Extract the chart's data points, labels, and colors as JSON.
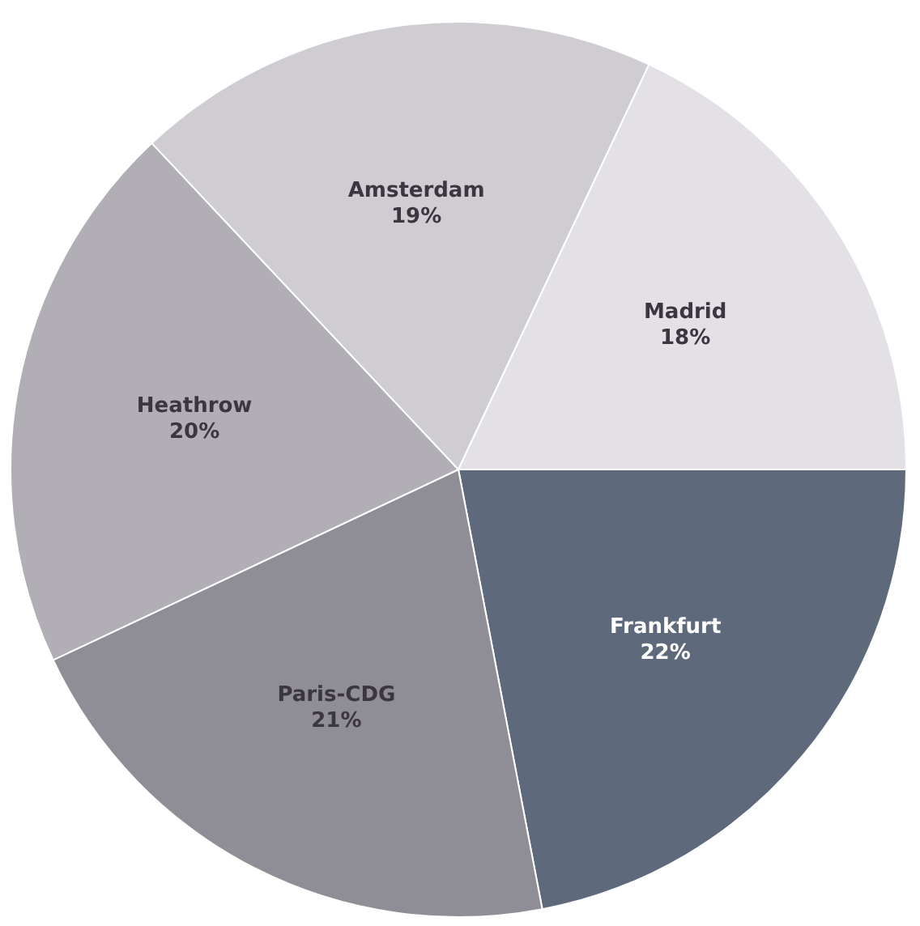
{
  "chart_data": {
    "type": "pie",
    "categories": [
      "Madrid",
      "Amsterdam",
      "Heathrow",
      "Paris-CDG",
      "Frankfurt"
    ],
    "values": [
      18,
      19,
      20,
      21,
      22
    ],
    "colors": [
      "#e4e1e6",
      "#cfccd2",
      "#b1aeb5",
      "#8f8d96",
      "#5e6a7b"
    ],
    "value_labels": [
      "18%",
      "19%",
      "20%",
      "21%",
      "22%"
    ],
    "legend": false
  }
}
